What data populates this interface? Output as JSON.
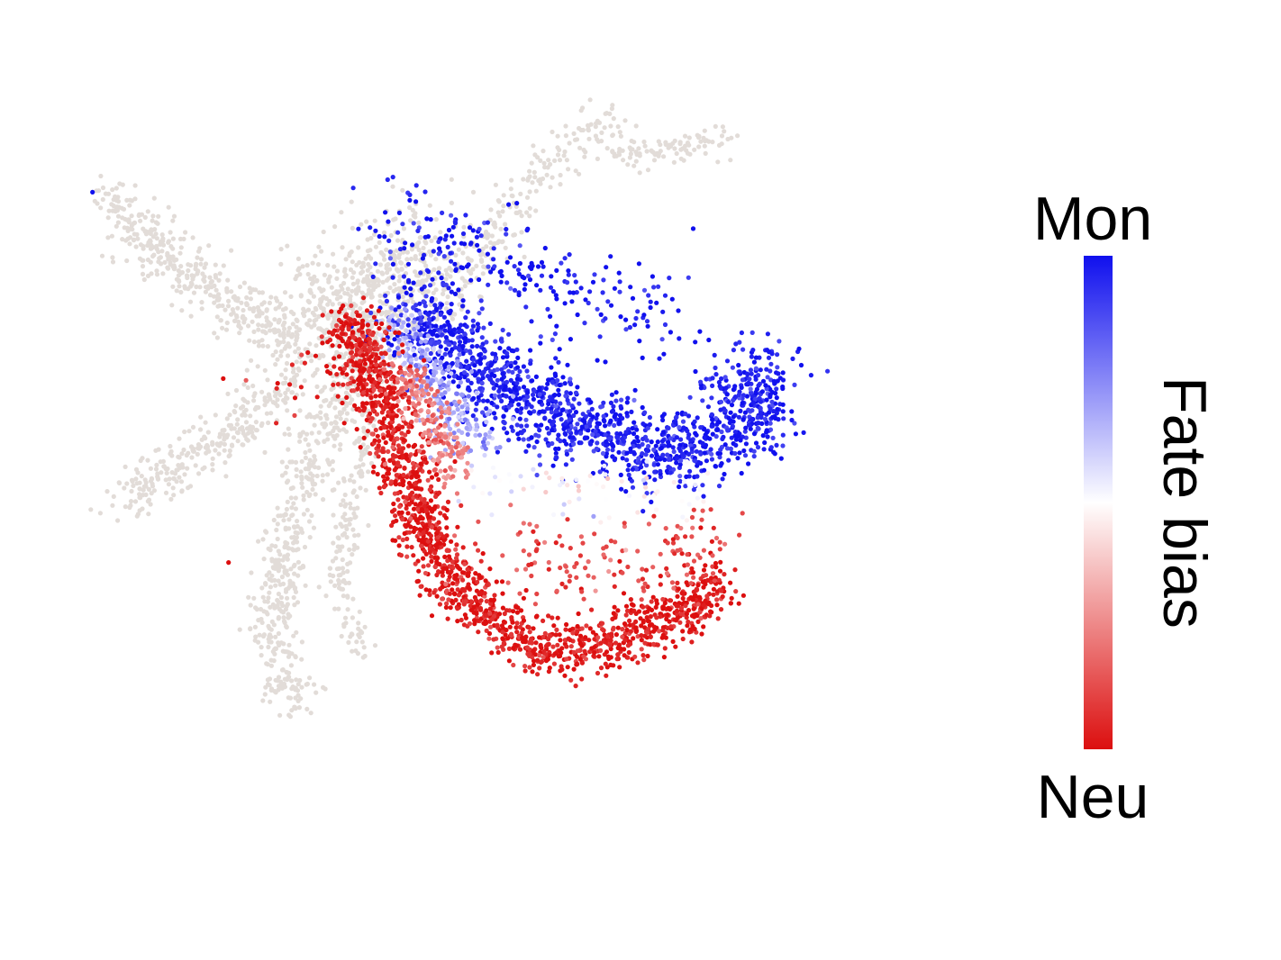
{
  "chart_data": {
    "type": "scatter",
    "title": "",
    "xlabel": "",
    "ylabel": "",
    "axes_visible": false,
    "grid": false,
    "color_scale": {
      "label": "Fate bias",
      "max_label": "Mon",
      "min_label": "Neu",
      "range": [
        -1,
        1
      ],
      "colors": {
        "max": "#1010ee",
        "mid": "#ffffff",
        "min": "#dc0f0f"
      },
      "placement": "right"
    },
    "unassigned_color": "#e2dcd8",
    "value_encoding": "x and y in embedding units, bias -1 (Neu) to 1 (Mon)",
    "xlim": [
      0,
      100
    ],
    "ylim": [
      0,
      100
    ],
    "regions": [
      {
        "name": "background-left-arm",
        "bias": null,
        "count": 380,
        "polyline": [
          [
            10.5,
            85
          ],
          [
            16,
            77
          ],
          [
            23,
            71
          ],
          [
            28,
            67
          ]
        ],
        "spread": 1.6
      },
      {
        "name": "background-center",
        "bias": null,
        "count": 620,
        "polyline": [
          [
            28,
            72
          ],
          [
            33,
            70
          ],
          [
            37,
            74
          ],
          [
            40,
            79
          ]
        ],
        "spread": 3.6
      },
      {
        "name": "background-lower-left-arm",
        "bias": null,
        "count": 300,
        "polyline": [
          [
            28,
            64
          ],
          [
            22,
            56
          ],
          [
            16,
            52
          ],
          [
            11,
            48
          ]
        ],
        "spread": 1.6
      },
      {
        "name": "background-lower-arm",
        "bias": null,
        "count": 520,
        "polyline": [
          [
            35,
            66
          ],
          [
            30,
            56
          ],
          [
            27,
            44
          ],
          [
            25.5,
            32
          ],
          [
            28,
            23
          ]
        ],
        "spread": 1.5
      },
      {
        "name": "background-lower-arm-2",
        "bias": null,
        "count": 160,
        "polyline": [
          [
            35,
            58
          ],
          [
            33,
            48
          ],
          [
            32,
            38
          ],
          [
            34,
            30
          ]
        ],
        "spread": 0.9
      },
      {
        "name": "background-upper",
        "bias": null,
        "count": 210,
        "polyline": [
          [
            42,
            71
          ],
          [
            45,
            78
          ],
          [
            49,
            85
          ],
          [
            54,
            92
          ],
          [
            58,
            94
          ]
        ],
        "spread": 1.4
      },
      {
        "name": "background-upper-right",
        "bias": null,
        "count": 90,
        "polyline": [
          [
            58,
            90
          ],
          [
            64,
            91
          ],
          [
            69,
            92
          ]
        ],
        "spread": 0.9
      },
      {
        "name": "mon-main-band",
        "bias": 0.95,
        "count": 1450,
        "polyline": [
          [
            38,
            72
          ],
          [
            46,
            63
          ],
          [
            56,
            56
          ],
          [
            64,
            54
          ],
          [
            70,
            58
          ],
          [
            72,
            65
          ]
        ],
        "spread": 2.6
      },
      {
        "name": "mon-upper-scatter",
        "bias": 0.97,
        "count": 230,
        "polyline": [
          [
            37,
            82
          ],
          [
            44,
            78
          ],
          [
            52,
            74
          ],
          [
            58,
            72
          ],
          [
            64,
            70
          ]
        ],
        "spread": 3.0
      },
      {
        "name": "mon-transition",
        "bias": 0.35,
        "count": 260,
        "polyline": [
          [
            37,
            70
          ],
          [
            40,
            64
          ],
          [
            43,
            58
          ],
          [
            45,
            55
          ]
        ],
        "spread": 1.6
      },
      {
        "name": "neu-main-band",
        "bias": -0.96,
        "count": 1650,
        "polyline": [
          [
            33,
            70
          ],
          [
            36,
            60
          ],
          [
            38,
            52
          ],
          [
            41,
            42
          ],
          [
            45,
            35
          ],
          [
            51,
            30
          ],
          [
            57,
            31
          ],
          [
            63,
            34
          ],
          [
            68,
            38
          ]
        ],
        "spread": 1.7
      },
      {
        "name": "neu-transition",
        "bias": -0.55,
        "count": 200,
        "polyline": [
          [
            38,
            64
          ],
          [
            41,
            57
          ],
          [
            43,
            51
          ]
        ],
        "spread": 1.3
      },
      {
        "name": "neu-sparse-interior",
        "bias": -0.75,
        "count": 140,
        "polyline": [
          [
            48,
            43
          ],
          [
            55,
            40
          ],
          [
            62,
            41
          ],
          [
            68,
            45
          ]
        ],
        "spread": 2.5
      },
      {
        "name": "neutral-gap",
        "bias": 0.0,
        "count": 70,
        "polyline": [
          [
            44,
            50
          ],
          [
            54,
            49
          ],
          [
            66,
            50
          ]
        ],
        "spread": 1.8
      },
      {
        "name": "neu-stray",
        "bias": -0.95,
        "count": 25,
        "polyline": [
          [
            26,
            62
          ],
          [
            30,
            64
          ],
          [
            33,
            66
          ]
        ],
        "spread": 2.4
      }
    ],
    "single_points": [
      {
        "x": 8.7,
        "y": 85.5,
        "bias": 1.0
      },
      {
        "x": 21.5,
        "y": 40.8,
        "bias": -1.0
      },
      {
        "x": 21.0,
        "y": 63.0,
        "bias": -1.0
      }
    ]
  }
}
